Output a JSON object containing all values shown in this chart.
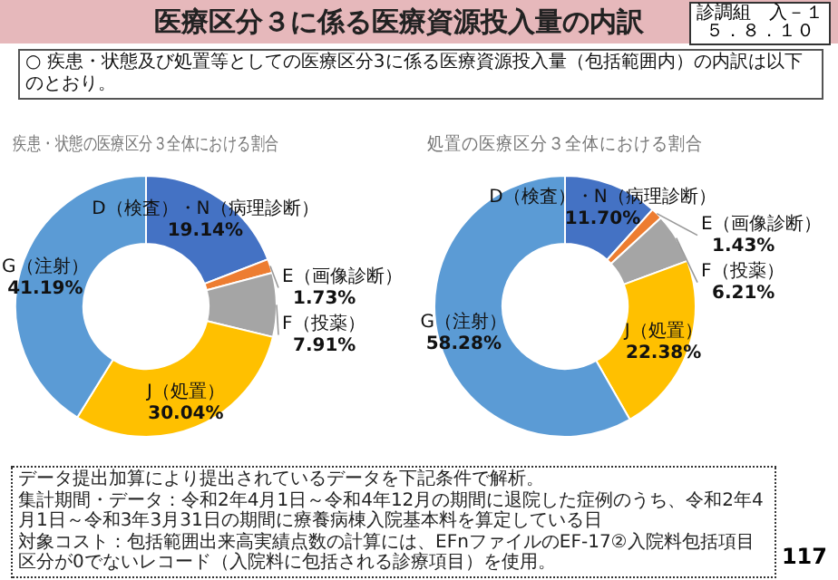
{
  "chart_data": [
    {
      "type": "donut",
      "title": "疾患・状態の医療区分３全体における割合",
      "categories": [
        "D（検査）・N（病理診断）",
        "E（画像診断）",
        "F（投薬）",
        "J（処置）",
        "G（注射）"
      ],
      "values": [
        19.14,
        1.73,
        7.91,
        30.04,
        41.19
      ],
      "value_labels": [
        "19.14%",
        "1.73%",
        "7.91%",
        "30.04%",
        "41.19%"
      ],
      "colors": [
        "#4472c4",
        "#ed7d31",
        "#a5a5a5",
        "#ffc000",
        "#5b9bd5"
      ],
      "annotations": [
        "医療区分３に係る医療資源投入量の内訳",
        "診調組　入－１",
        "５．８．１０",
        "○ 疾患・状態及び処置等としての医療区分3に係る医療資源投入量（包括範囲内）の内訳は以下のとおり。"
      ]
    },
    {
      "type": "donut",
      "title": "処置の医療区分３全体における割合",
      "categories": [
        "D（検査）・N（病理診断）",
        "E（画像診断）",
        "F（投薬）",
        "J（処置）",
        "G（注射）"
      ],
      "values": [
        11.7,
        1.43,
        6.21,
        22.38,
        58.28
      ],
      "value_labels": [
        "11.70%",
        "1.43%",
        "6.21%",
        "22.38%",
        "58.28%"
      ],
      "colors": [
        "#4472c4",
        "#ed7d31",
        "#a5a5a5",
        "#ffc000",
        "#5b9bd5"
      ],
      "annotations": [
        "データ提出加算により提出されているデータを下記条件で解析。",
        "集計期間・データ：令和2年4月1日～令和4年12月の期間に退院した症例のうち、令和2年4月1日～令和3年3月31日の期間に療養病棟入院基本料を算定している日",
        "対象コスト：包括範囲出来高実績点数の計算には、EFnファイルのEF-17②入院料包括項目区分が0でないレコード（入院料に包括される診療項目）を使用。",
        "117"
      ]
    }
  ]
}
